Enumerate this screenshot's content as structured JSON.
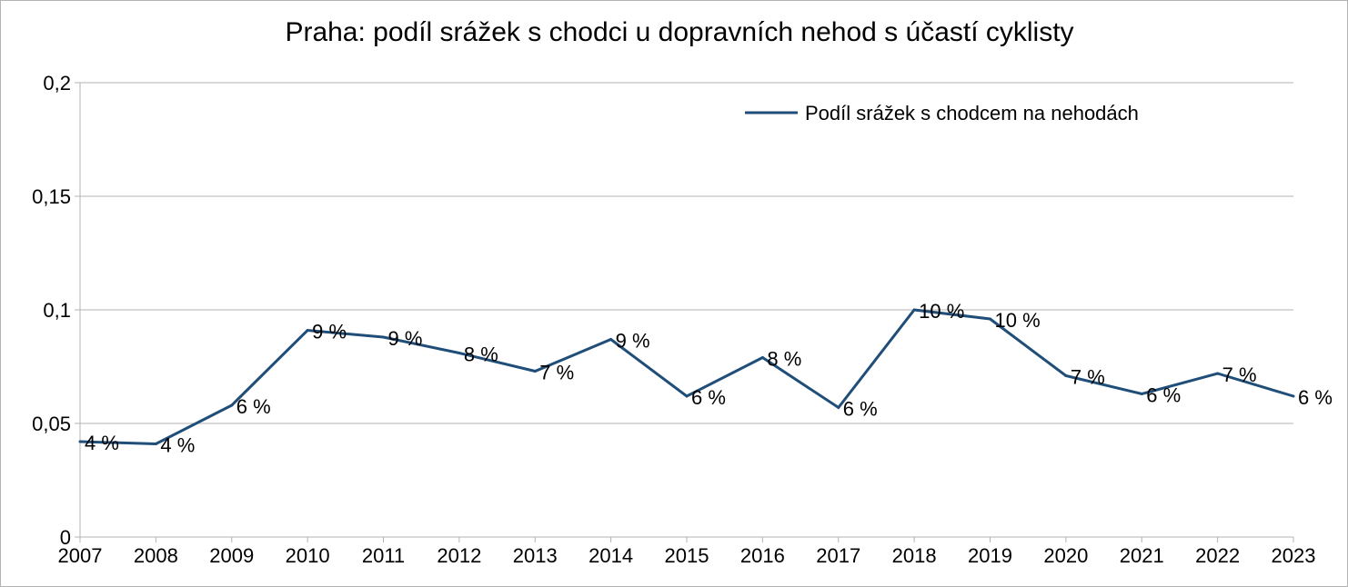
{
  "chart_data": {
    "type": "line",
    "title": "Praha: podíl srážek s chodci u dopravních nehod s účastí cyklisty",
    "xlabel": "",
    "ylabel": "",
    "ylim": [
      0,
      0.2
    ],
    "yticks": [
      0,
      0.05,
      0.1,
      0.15,
      0.2
    ],
    "ytick_labels": [
      "0",
      "0,05",
      "0,1",
      "0,15",
      "0,2"
    ],
    "grid": true,
    "legend_position": "top-right",
    "categories": [
      "2007",
      "2008",
      "2009",
      "2010",
      "2011",
      "2012",
      "2013",
      "2014",
      "2015",
      "2016",
      "2017",
      "2018",
      "2019",
      "2020",
      "2021",
      "2022",
      "2023"
    ],
    "series": [
      {
        "name": "Podíl srážek s chodcem na nehodách",
        "color": "#1f4e79",
        "values": [
          0.042,
          0.041,
          0.058,
          0.091,
          0.088,
          0.081,
          0.073,
          0.087,
          0.062,
          0.079,
          0.057,
          0.1,
          0.096,
          0.071,
          0.063,
          0.072,
          0.062
        ],
        "labels": [
          "4 %",
          "4 %",
          "6 %",
          "9 %",
          "9 %",
          "8 %",
          "7 %",
          "9 %",
          "6 %",
          "8 %",
          "6 %",
          "10 %",
          "10 %",
          "7 %",
          "6 %",
          "7 %",
          "6 %"
        ]
      }
    ]
  }
}
